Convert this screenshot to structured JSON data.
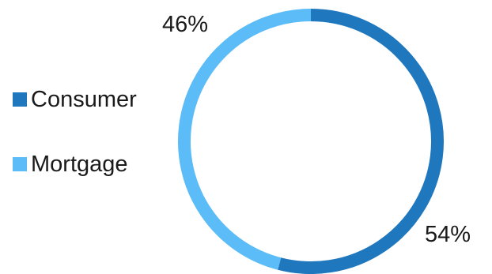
{
  "chart_data": {
    "type": "pie",
    "style": "donut",
    "categories": [
      "Consumer",
      "Mortgage"
    ],
    "values": [
      54,
      46
    ],
    "value_labels": [
      "54%",
      "46%"
    ],
    "colors": [
      "#1f77be",
      "#5bbcf7"
    ],
    "title": "",
    "legend": {
      "placement": "left",
      "entries": [
        "Consumer",
        "Mortgage"
      ]
    }
  }
}
